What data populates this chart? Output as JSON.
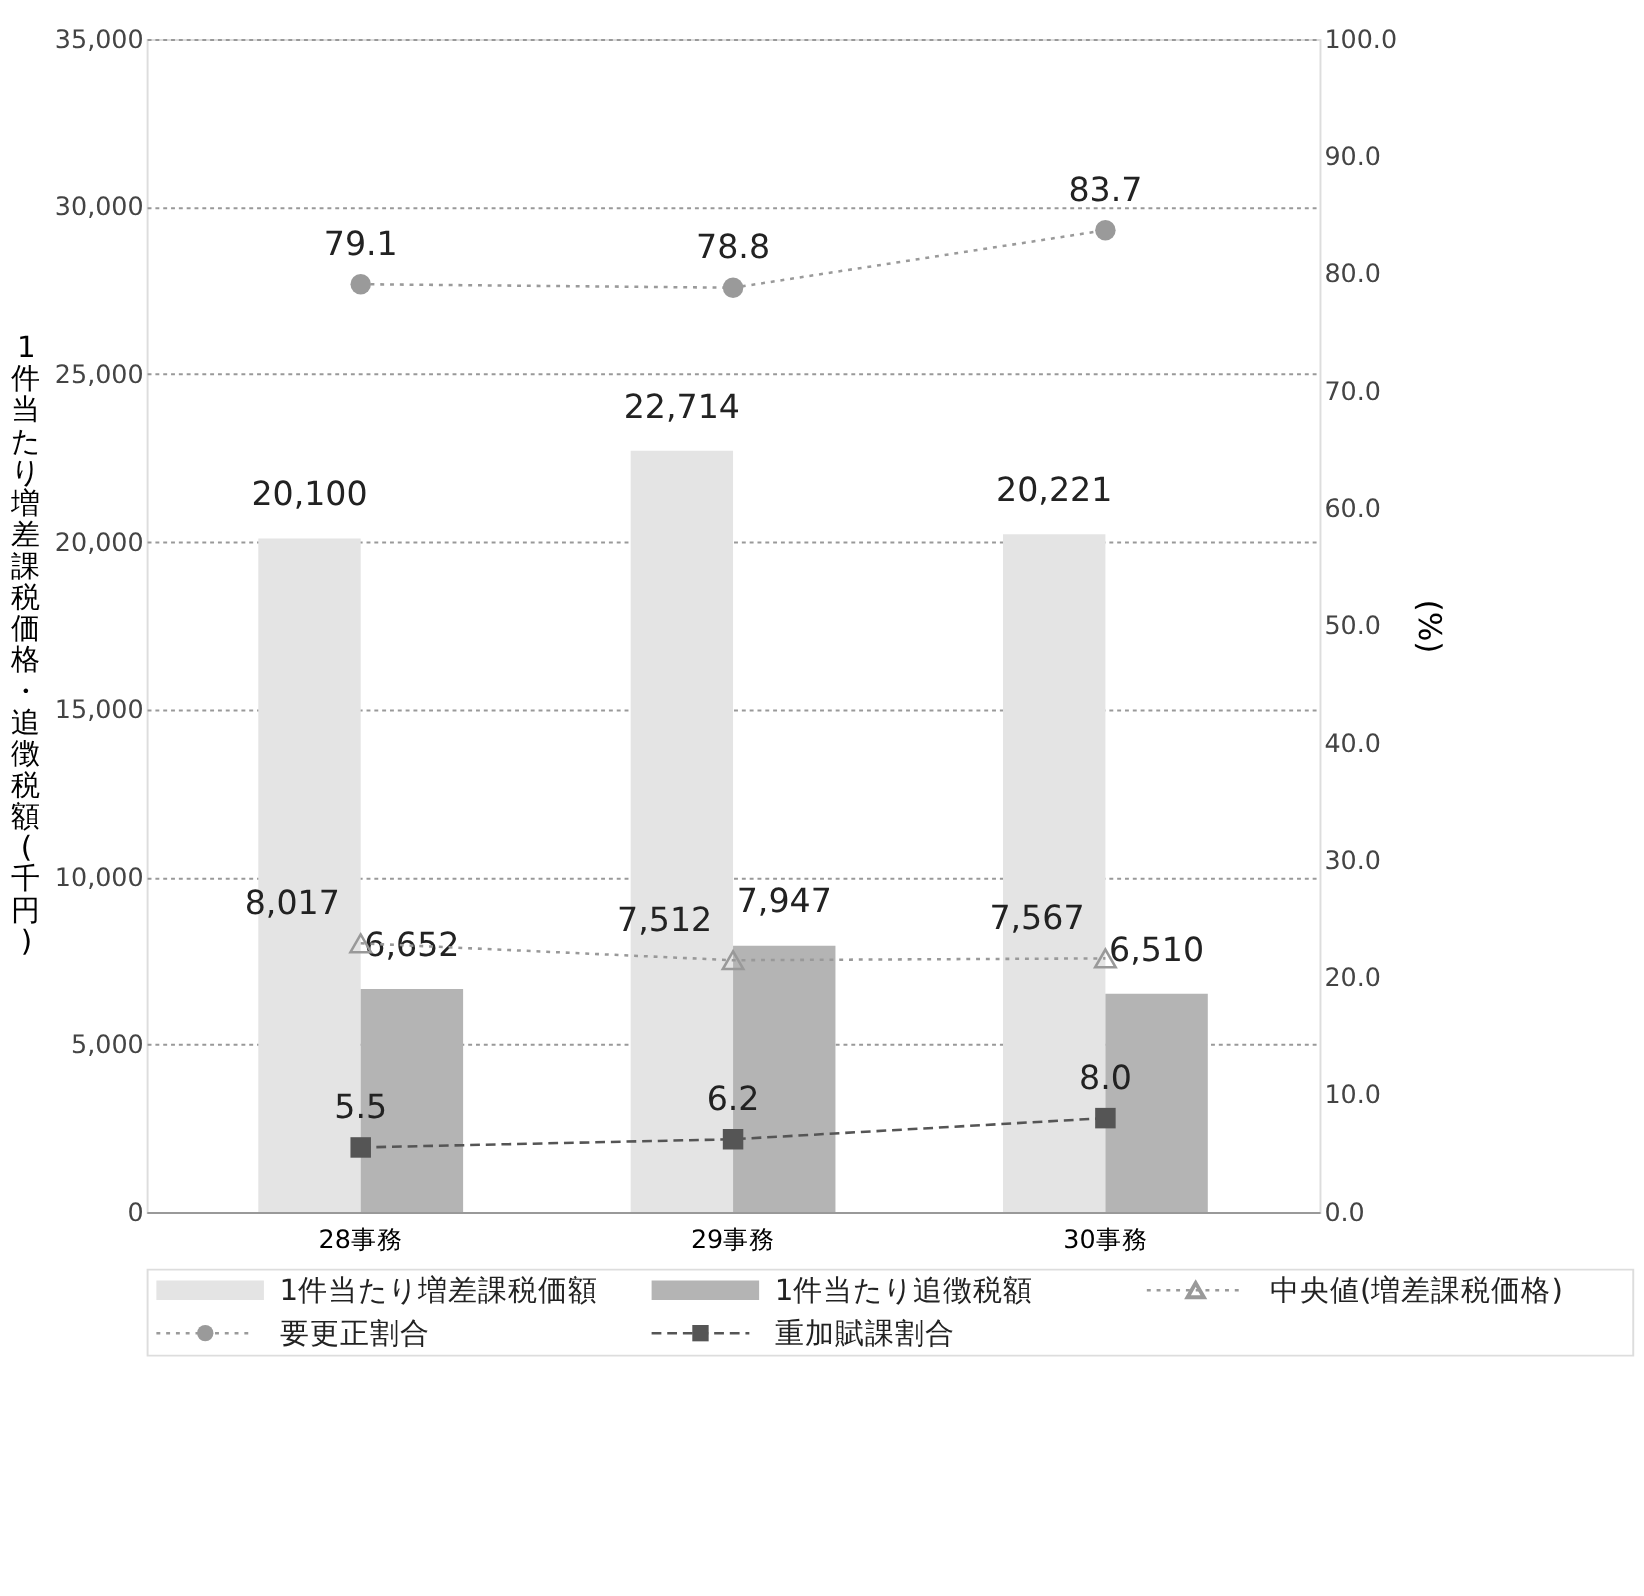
{
  "chart_data": {
    "type": "bar",
    "categories": [
      "28事務",
      "29事務",
      "30事務"
    ],
    "ylabel": "1件当たり増差課税価格・追徴税額(千円)",
    "y2label": "(%)",
    "ylim": [
      0,
      35000
    ],
    "yticks": [
      0,
      {
        "value": 5000,
        "label": "5,000"
      },
      {
        "value": 10000,
        "label": "10,000"
      },
      {
        "value": 15000,
        "label": "15,000"
      },
      {
        "value": 20000,
        "label": "20,000"
      },
      {
        "value": 25000,
        "label": "25,000"
      },
      {
        "value": 30000,
        "label": "30,000"
      },
      {
        "value": 35000,
        "label": "35,000"
      }
    ],
    "y2lim": [
      0,
      100
    ],
    "y2ticks": [
      {
        "value": 0,
        "label": "0.0"
      },
      {
        "value": 10,
        "label": "10.0"
      },
      {
        "value": 20,
        "label": "20.0"
      },
      {
        "value": 30,
        "label": "30.0"
      },
      {
        "value": 40,
        "label": "40.0"
      },
      {
        "value": 50,
        "label": "50.0"
      },
      {
        "value": 60,
        "label": "60.0"
      },
      {
        "value": 70,
        "label": "70.0"
      },
      {
        "value": 80,
        "label": "80.0"
      },
      {
        "value": 90,
        "label": "90.0"
      },
      {
        "value": 100,
        "label": "100.0"
      }
    ],
    "grid": "y",
    "data_labels": true,
    "legend": "bottom",
    "series": [
      {
        "name": "1件当たり増差課税価額",
        "color": "#e4e4e4",
        "values": [
          20100,
          22714,
          20221
        ],
        "value_labels": [
          "20,100",
          "22,714",
          "20,221"
        ]
      },
      {
        "name": "1件当たり追徴税額",
        "color": "#b4b4b4",
        "values": [
          6652,
          7947,
          6510
        ],
        "value_labels": [
          "6,652",
          "7,947",
          "6,510"
        ]
      },
      {
        "name": "中央値(増差課税価格)",
        "type": "line",
        "color": "#999999",
        "marker": "triangle",
        "line_style": "dotted",
        "values": [
          8017,
          7512,
          7567
        ],
        "value_labels": [
          "8,017",
          "7,512",
          "7,567"
        ]
      },
      {
        "name": "要更正割合",
        "type": "line",
        "axis": "y2",
        "color": "#9a9a9a",
        "marker": "circle",
        "line_style": "dotted",
        "values": [
          79.1,
          78.8,
          83.7
        ],
        "value_labels": [
          "79.1",
          "78.8",
          "83.7"
        ]
      },
      {
        "name": "重加賦課割合",
        "type": "line",
        "axis": "y2",
        "color": "#555555",
        "marker": "square",
        "line_style": "dashed",
        "values": [
          5.5,
          6.2,
          8.0
        ],
        "value_labels": [
          "5.5",
          "6.2",
          "8.0"
        ]
      }
    ]
  }
}
